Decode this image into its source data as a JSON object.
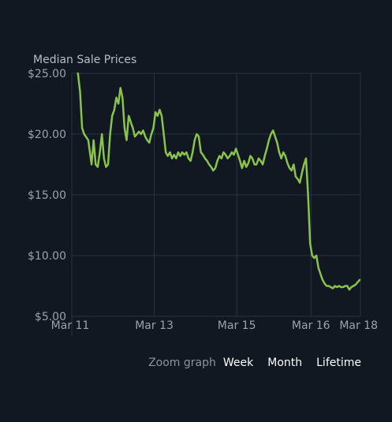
{
  "chart_data": {
    "type": "line",
    "title": "Median Sale Prices",
    "xlabel": "",
    "ylabel": "",
    "ylim": [
      5,
      25
    ],
    "xlim": [
      0,
      7
    ],
    "grid": true,
    "legend": "none",
    "y_ticks": [
      {
        "value": 25,
        "label": "$25.00"
      },
      {
        "value": 20,
        "label": "$20.00"
      },
      {
        "value": 15,
        "label": "$15.00"
      },
      {
        "value": 10,
        "label": "$10.00"
      },
      {
        "value": 5,
        "label": "$5.00"
      }
    ],
    "x_ticks": [
      {
        "value": 0,
        "label": "Mar 11"
      },
      {
        "value": 2,
        "label": "Mar 13"
      },
      {
        "value": 4,
        "label": "Mar 15"
      },
      {
        "value": 5.8,
        "label": "Mar 16"
      },
      {
        "value": 7,
        "label": "Mar 18"
      }
    ],
    "series": [
      {
        "color": "#8bc34a",
        "x": [
          0.15,
          0.2,
          0.25,
          0.3,
          0.4,
          0.48,
          0.53,
          0.58,
          0.63,
          0.68,
          0.73,
          0.78,
          0.83,
          0.88,
          0.93,
          0.98,
          1.03,
          1.08,
          1.13,
          1.18,
          1.23,
          1.28,
          1.33,
          1.38,
          1.43,
          1.48,
          1.53,
          1.58,
          1.63,
          1.68,
          1.73,
          1.78,
          1.83,
          1.88,
          1.93,
          1.98,
          2.03,
          2.08,
          2.13,
          2.18,
          2.23,
          2.28,
          2.33,
          2.38,
          2.43,
          2.48,
          2.53,
          2.58,
          2.63,
          2.68,
          2.73,
          2.78,
          2.83,
          2.88,
          2.93,
          2.98,
          3.03,
          3.08,
          3.13,
          3.18,
          3.23,
          3.28,
          3.33,
          3.38,
          3.43,
          3.48,
          3.53,
          3.58,
          3.63,
          3.68,
          3.73,
          3.78,
          3.83,
          3.88,
          3.93,
          3.98,
          4.03,
          4.08,
          4.13,
          4.18,
          4.23,
          4.28,
          4.33,
          4.38,
          4.43,
          4.48,
          4.53,
          4.58,
          4.63,
          4.68,
          4.73,
          4.78,
          4.83,
          4.88,
          4.93,
          4.98,
          5.03,
          5.08,
          5.13,
          5.18,
          5.23,
          5.28,
          5.33,
          5.38,
          5.43,
          5.48,
          5.53,
          5.58,
          5.63,
          5.68,
          5.73,
          5.78,
          5.83,
          5.88,
          5.93,
          5.98,
          6.03,
          6.08,
          6.13,
          6.18,
          6.23,
          6.28,
          6.33,
          6.38,
          6.43,
          6.48,
          6.53,
          6.58,
          6.63,
          6.68,
          6.73,
          6.78,
          6.83,
          6.88,
          6.93,
          6.98
        ],
        "y": [
          25.0,
          23.5,
          20.5,
          20.0,
          19.5,
          17.5,
          19.5,
          17.5,
          17.3,
          18.5,
          20.0,
          18.0,
          17.3,
          17.5,
          20.0,
          21.5,
          22.0,
          23.0,
          22.5,
          23.8,
          23.0,
          20.5,
          19.5,
          21.5,
          21.0,
          20.5,
          19.8,
          20.0,
          20.2,
          20.0,
          20.3,
          19.8,
          19.5,
          19.3,
          20.0,
          20.5,
          21.8,
          21.5,
          22.0,
          21.5,
          20.0,
          18.5,
          18.2,
          18.5,
          18.0,
          18.3,
          18.0,
          18.5,
          18.2,
          18.5,
          18.3,
          18.5,
          18.0,
          17.8,
          18.5,
          19.5,
          20.0,
          19.8,
          18.5,
          18.3,
          18.0,
          17.8,
          17.5,
          17.3,
          17.0,
          17.2,
          17.8,
          18.2,
          18.0,
          18.5,
          18.3,
          18.0,
          18.2,
          18.5,
          18.3,
          18.8,
          18.3,
          17.8,
          17.2,
          17.8,
          17.3,
          17.6,
          18.2,
          18.0,
          17.5,
          17.5,
          18.0,
          17.8,
          17.5,
          18.2,
          18.8,
          19.5,
          20.0,
          20.3,
          19.8,
          19.3,
          18.5,
          18.0,
          18.5,
          18.2,
          17.6,
          17.2,
          17.0,
          17.5,
          16.5,
          16.3,
          16.0,
          16.8,
          17.5,
          18.0,
          15.0,
          11.0,
          10.0,
          9.8,
          10.0,
          9.0,
          8.5,
          8.0,
          7.7,
          7.5,
          7.5,
          7.4,
          7.3,
          7.5,
          7.4,
          7.5,
          7.4,
          7.4,
          7.5,
          7.5,
          7.2,
          7.4,
          7.5,
          7.6,
          7.8,
          8.0
        ]
      }
    ]
  },
  "zoom": {
    "label": "Zoom graph",
    "buttons": [
      "Week",
      "Month",
      "Lifetime"
    ]
  },
  "colors": {
    "background": "#111822",
    "grid": "#283543",
    "axis_text": "#9aa2ab",
    "title_text": "#b6bdc4",
    "line": "#8bc34a"
  }
}
